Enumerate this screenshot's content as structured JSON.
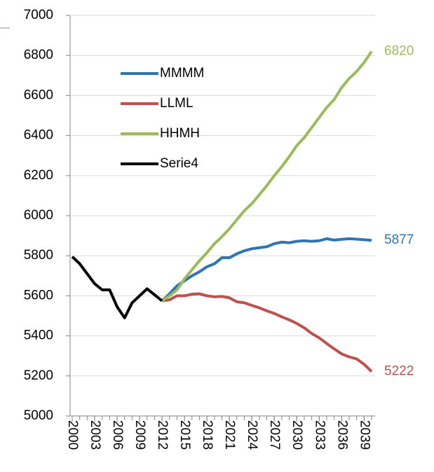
{
  "chart_data": {
    "type": "line",
    "x": [
      2000,
      2001,
      2002,
      2003,
      2004,
      2005,
      2006,
      2007,
      2008,
      2009,
      2010,
      2011,
      2012,
      2013,
      2014,
      2015,
      2016,
      2017,
      2018,
      2019,
      2020,
      2021,
      2022,
      2023,
      2024,
      2025,
      2026,
      2027,
      2028,
      2029,
      2030,
      2031,
      2032,
      2033,
      2034,
      2035,
      2036,
      2037,
      2038,
      2039,
      2040
    ],
    "xlim": [
      2000,
      2040
    ],
    "xticks": [
      2000,
      2003,
      2006,
      2009,
      2012,
      2015,
      2018,
      2021,
      2024,
      2027,
      2030,
      2033,
      2036,
      2039
    ],
    "ylim": [
      5000,
      7000
    ],
    "yticks": [
      5000,
      5200,
      5400,
      5600,
      5800,
      6000,
      6200,
      6400,
      6600,
      6800,
      7000
    ],
    "grid": true,
    "series": [
      {
        "name": "MMMM",
        "color": "#2e75b6",
        "values": [
          null,
          null,
          null,
          null,
          null,
          null,
          null,
          null,
          null,
          null,
          null,
          null,
          5575,
          5610,
          5650,
          5675,
          5700,
          5720,
          5745,
          5760,
          5790,
          5790,
          5810,
          5825,
          5835,
          5840,
          5845,
          5860,
          5868,
          5865,
          5872,
          5875,
          5872,
          5875,
          5885,
          5878,
          5882,
          5885,
          5883,
          5880,
          5877
        ]
      },
      {
        "name": "LLML",
        "color": "#c0504d",
        "values": [
          null,
          null,
          null,
          null,
          null,
          null,
          null,
          null,
          null,
          null,
          null,
          null,
          5575,
          5580,
          5600,
          5600,
          5608,
          5610,
          5600,
          5595,
          5597,
          5590,
          5570,
          5565,
          5552,
          5540,
          5525,
          5512,
          5495,
          5480,
          5462,
          5440,
          5412,
          5390,
          5362,
          5335,
          5310,
          5295,
          5285,
          5258,
          5222
        ]
      },
      {
        "name": "HHMH",
        "color": "#9bbb59",
        "values": [
          null,
          null,
          null,
          null,
          null,
          null,
          null,
          null,
          null,
          null,
          null,
          null,
          5575,
          5600,
          5630,
          5685,
          5730,
          5775,
          5815,
          5860,
          5895,
          5935,
          5980,
          6025,
          6060,
          6105,
          6150,
          6200,
          6245,
          6295,
          6350,
          6390,
          6440,
          6490,
          6540,
          6580,
          6640,
          6685,
          6720,
          6765,
          6820
        ]
      },
      {
        "name": "Serie4",
        "color": "#000000",
        "values": [
          5795,
          5760,
          5710,
          5660,
          5630,
          5630,
          5545,
          5490,
          5565,
          5600,
          5635,
          5605,
          5575,
          null,
          null,
          null,
          null,
          null,
          null,
          null,
          null,
          null,
          null,
          null,
          null,
          null,
          null,
          null,
          null,
          null,
          null,
          null,
          null,
          null,
          null,
          null,
          null,
          null,
          null,
          null,
          null
        ]
      }
    ]
  }
}
